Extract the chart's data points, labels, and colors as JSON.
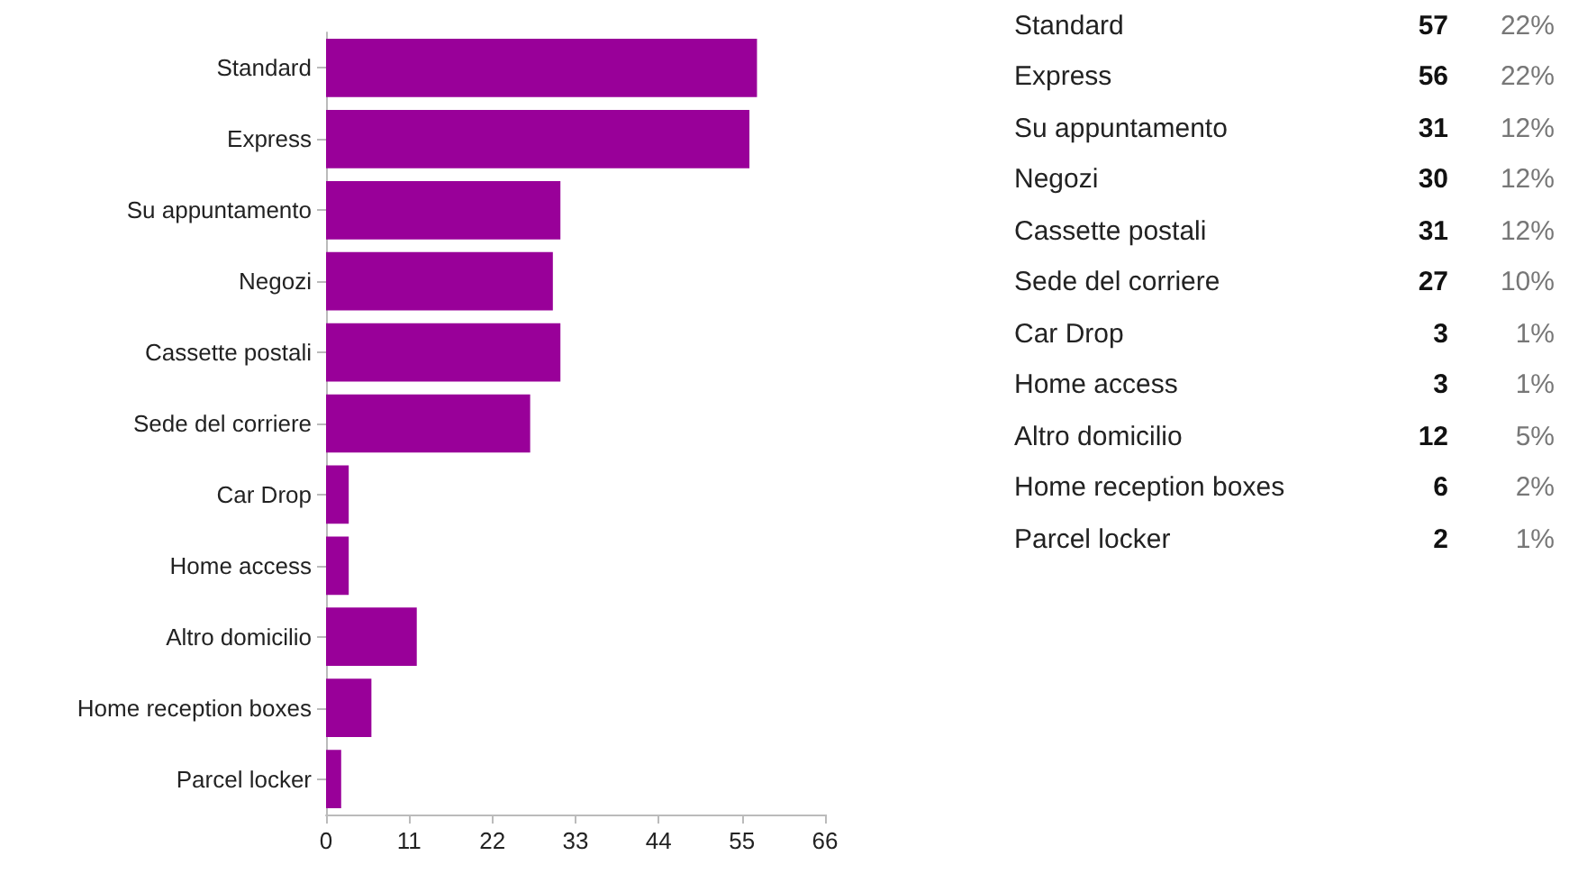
{
  "chart_data": [
    {
      "type": "bar",
      "orientation": "horizontal",
      "categories": [
        "Standard",
        "Express",
        "Su appuntamento",
        "Negozi",
        "Cassette postali",
        "Sede del corriere",
        "Car Drop",
        "Home access",
        "Altro domicilio",
        "Home reception boxes",
        "Parcel locker"
      ],
      "values": [
        57,
        56,
        31,
        30,
        31,
        27,
        3,
        3,
        12,
        6,
        2
      ],
      "color": "#990099",
      "grid": false,
      "xlim": [
        0,
        66
      ],
      "xticks": [
        0,
        11,
        22,
        33,
        44,
        55,
        66
      ]
    },
    {
      "type": "other",
      "annotations": [
        "Standard",
        "57",
        "22%",
        "Express",
        "56",
        "22%",
        "Su appuntamento",
        "31",
        "12%",
        "Negozi",
        "30",
        "12%",
        "Cassette postali",
        "31",
        "12%",
        "Sede del corriere",
        "27",
        "10%",
        "Car Drop",
        "3",
        "1%",
        "Home access",
        "3",
        "1%",
        "Altro domicilio",
        "12",
        "5%",
        "Home reception boxes",
        "6",
        "2%",
        "Parcel locker",
        "2",
        "1%"
      ]
    }
  ]
}
